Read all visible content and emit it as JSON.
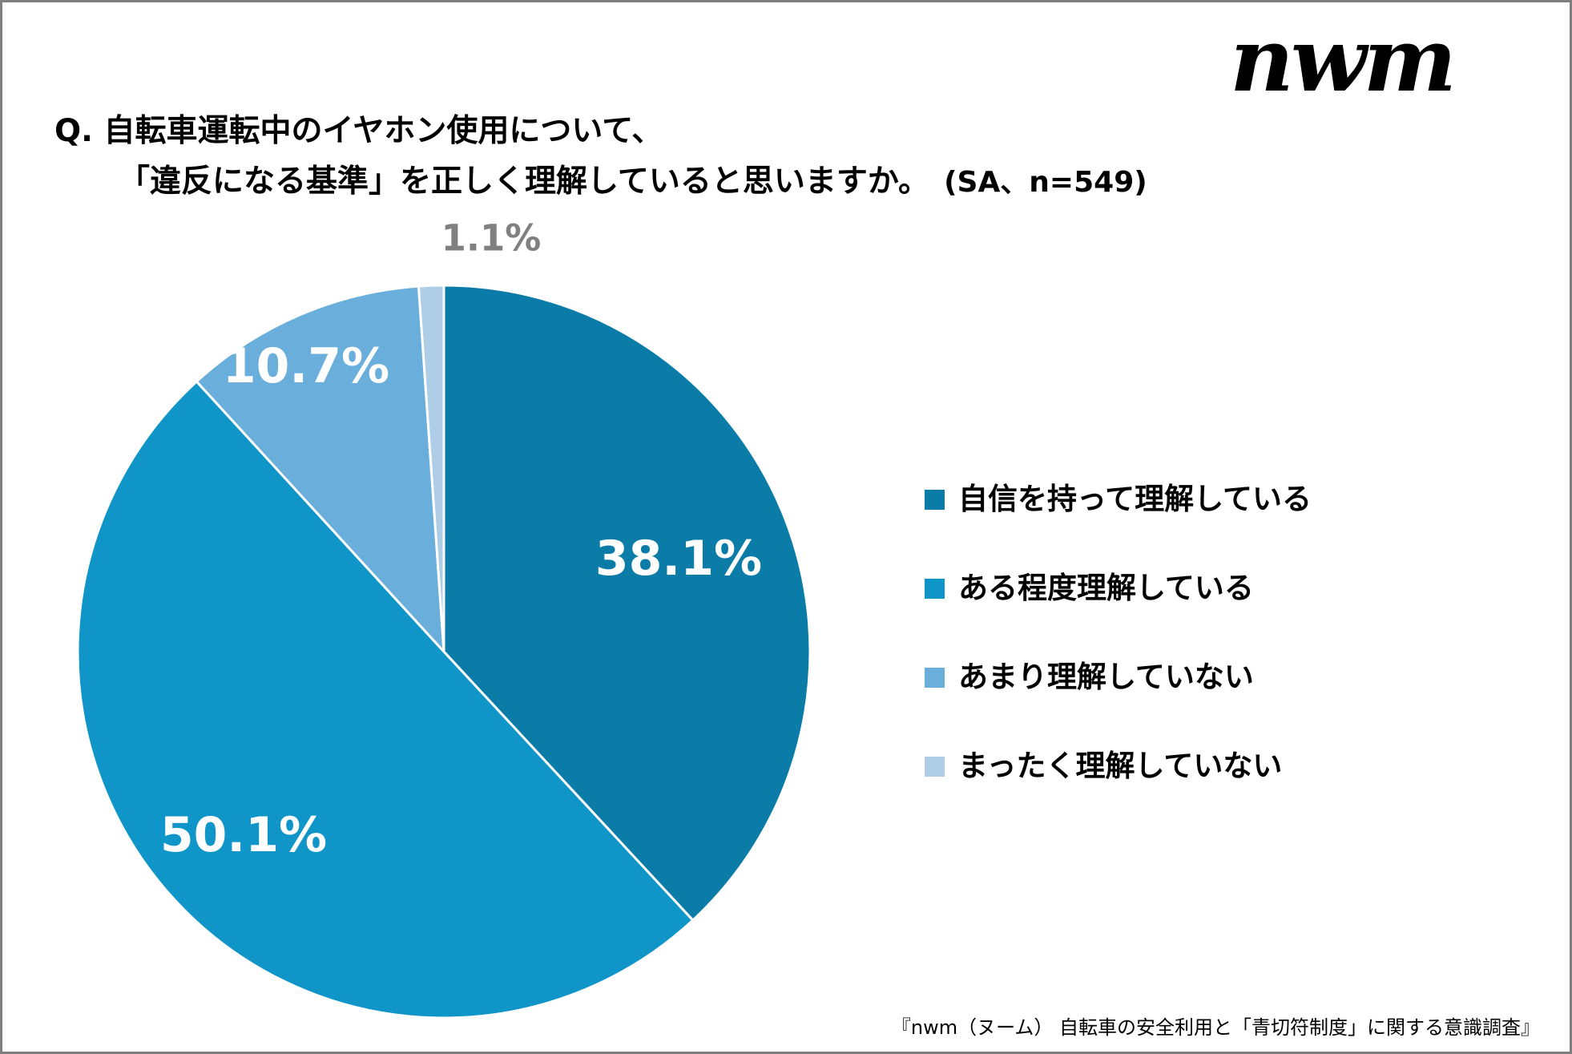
{
  "logo": "nwm",
  "title": {
    "line1": "Q. 自転車運転中のイヤホン使用について、",
    "line2": "「違反になる基準」を正しく理解していると思いますか。",
    "note": "(SA、n=549)"
  },
  "chart_data": {
    "type": "pie",
    "categories": [
      "自信を持って理解している",
      "ある程度理解している",
      "あまり理解していない",
      "まったく理解していない"
    ],
    "values": [
      38.1,
      50.1,
      10.7,
      1.1
    ],
    "data_labels": [
      "38.1%",
      "50.1%",
      "10.7%",
      "1.1%"
    ],
    "colors": [
      "#0b7ba8",
      "#0f95c8",
      "#6aafdb",
      "#aecde6"
    ],
    "label_colors": [
      "#ffffff",
      "#ffffff",
      "#ffffff",
      "#808080"
    ],
    "start": "top",
    "direction": "clockwise",
    "legend_position": "right"
  },
  "footer": "『nwm（ヌーム） 自転車の安全利用と「青切符制度」に関する意識調査』"
}
